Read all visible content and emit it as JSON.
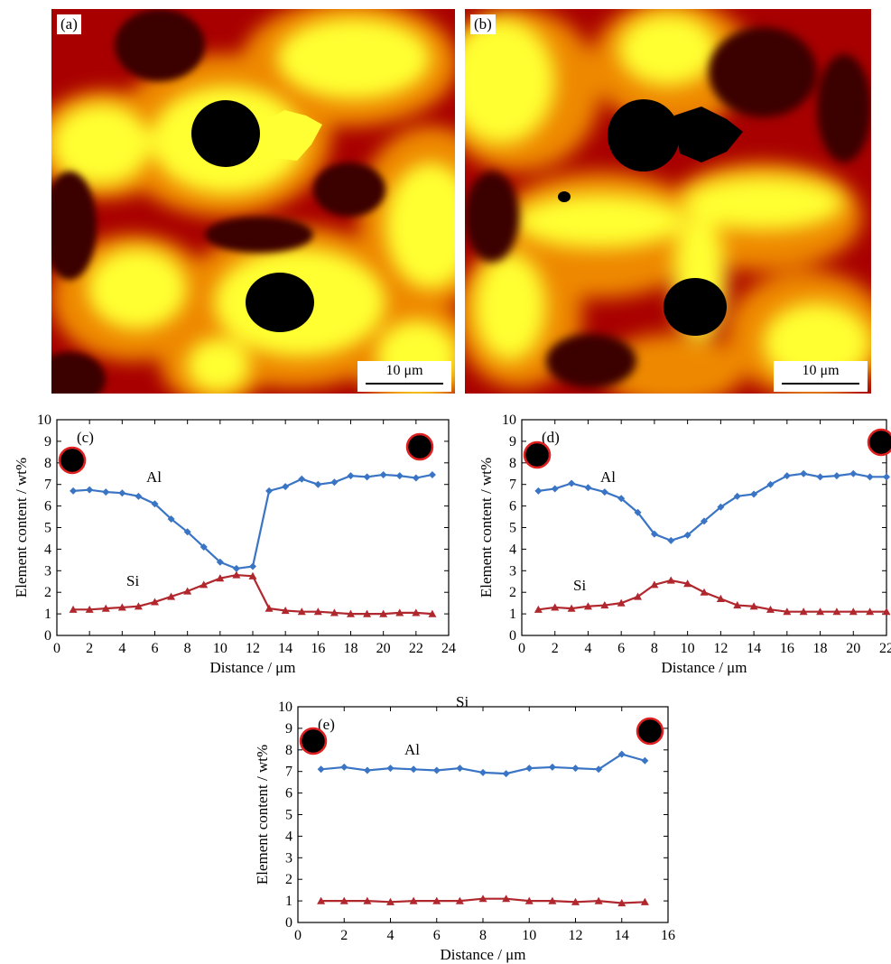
{
  "maps": [
    {
      "label": "(a)",
      "scale": "10 μm",
      "colors": {
        "bright": "#ffff33",
        "mid": "#ee8800",
        "dark": "#a80000",
        "void": "#000000"
      }
    },
    {
      "label": "(b)",
      "scale": "10 μm",
      "colors": {
        "bright": "#ffff33",
        "mid": "#ee8800",
        "dark": "#a80000",
        "void": "#000000"
      }
    }
  ],
  "chart_data": [
    {
      "type": "line",
      "panel_label": "(c)",
      "xlabel": "Distance / μm",
      "ylabel": "Element content / wt%",
      "xlim": [
        0,
        24
      ],
      "ylim": [
        0,
        10
      ],
      "xticks": [
        0,
        2,
        4,
        6,
        8,
        10,
        12,
        14,
        16,
        18,
        20,
        22,
        24
      ],
      "yticks": [
        0,
        1,
        2,
        3,
        4,
        5,
        6,
        7,
        8,
        9,
        10
      ],
      "series": [
        {
          "name": "Al",
          "marker": "diamond",
          "color": "#3a74c4",
          "x": [
            1,
            2,
            3,
            4,
            5,
            6,
            7,
            8,
            9,
            10,
            11,
            12,
            13,
            14,
            15,
            16,
            17,
            18,
            19,
            20,
            21,
            22,
            23
          ],
          "y": [
            6.7,
            6.75,
            6.65,
            6.6,
            6.45,
            6.1,
            5.4,
            4.8,
            4.1,
            3.4,
            3.1,
            3.2,
            6.7,
            6.9,
            7.25,
            7.0,
            7.1,
            7.4,
            7.35,
            7.45,
            7.4,
            7.3,
            7.45
          ]
        },
        {
          "name": "Si",
          "marker": "triangle",
          "color": "#b0282e",
          "x": [
            1,
            2,
            3,
            4,
            5,
            6,
            7,
            8,
            9,
            10,
            11,
            12,
            13,
            14,
            15,
            16,
            17,
            18,
            19,
            20,
            21,
            22,
            23
          ],
          "y": [
            1.2,
            1.2,
            1.25,
            1.3,
            1.35,
            1.55,
            1.8,
            2.05,
            2.35,
            2.65,
            2.8,
            2.75,
            1.25,
            1.15,
            1.1,
            1.1,
            1.05,
            1.0,
            1.0,
            1.0,
            1.05,
            1.05,
            1.0
          ]
        }
      ]
    },
    {
      "type": "line",
      "panel_label": "(d)",
      "xlabel": "Distance / μm",
      "ylabel": "Element content / wt%",
      "xlim": [
        0,
        22
      ],
      "ylim": [
        0,
        10
      ],
      "xticks": [
        0,
        2,
        4,
        6,
        8,
        10,
        12,
        14,
        16,
        18,
        20,
        22
      ],
      "yticks": [
        0,
        1,
        2,
        3,
        4,
        5,
        6,
        7,
        8,
        9,
        10
      ],
      "series": [
        {
          "name": "Al",
          "marker": "diamond",
          "color": "#3a74c4",
          "x": [
            1,
            2,
            3,
            4,
            5,
            6,
            7,
            8,
            9,
            10,
            11,
            12,
            13,
            14,
            15,
            16,
            17,
            18,
            19,
            20,
            21,
            22
          ],
          "y": [
            6.7,
            6.8,
            7.05,
            6.85,
            6.65,
            6.35,
            5.7,
            4.7,
            4.4,
            4.65,
            5.3,
            5.95,
            6.45,
            6.55,
            7.0,
            7.4,
            7.5,
            7.35,
            7.4,
            7.5,
            7.35,
            7.35
          ]
        },
        {
          "name": "Si",
          "marker": "triangle",
          "color": "#b0282e",
          "x": [
            1,
            2,
            3,
            4,
            5,
            6,
            7,
            8,
            9,
            10,
            11,
            12,
            13,
            14,
            15,
            16,
            17,
            18,
            19,
            20,
            21,
            22
          ],
          "y": [
            1.2,
            1.3,
            1.25,
            1.35,
            1.4,
            1.5,
            1.8,
            2.35,
            2.55,
            2.4,
            2.0,
            1.7,
            1.4,
            1.35,
            1.2,
            1.1,
            1.1,
            1.1,
            1.1,
            1.1,
            1.1,
            1.1
          ]
        }
      ]
    },
    {
      "type": "line",
      "panel_label": "(e)",
      "xlabel": "Distance / μm",
      "ylabel": "Element content / wt%",
      "xlim": [
        0,
        16
      ],
      "ylim": [
        0,
        10
      ],
      "xticks": [
        0,
        2,
        4,
        6,
        8,
        10,
        12,
        14,
        16
      ],
      "yticks": [
        0,
        1,
        2,
        3,
        4,
        5,
        6,
        7,
        8,
        9,
        10
      ],
      "series": [
        {
          "name": "Al",
          "marker": "diamond",
          "color": "#3a74c4",
          "x": [
            1,
            2,
            3,
            4,
            5,
            6,
            7,
            8,
            9,
            10,
            11,
            12,
            13,
            14,
            15
          ],
          "y": [
            7.1,
            7.2,
            7.05,
            7.15,
            7.1,
            7.05,
            7.15,
            6.95,
            6.9,
            7.15,
            7.2,
            7.15,
            7.1,
            7.8,
            7.5
          ]
        },
        {
          "name": "Si",
          "marker": "triangle",
          "color": "#b0282e",
          "x": [
            1,
            2,
            3,
            4,
            5,
            6,
            7,
            8,
            9,
            10,
            11,
            12,
            13,
            14,
            15
          ],
          "y": [
            1.0,
            1.0,
            1.0,
            0.95,
            1.0,
            1.0,
            1.0,
            1.1,
            1.1,
            1.0,
            1.0,
            0.95,
            1.0,
            0.9,
            0.95
          ]
        }
      ]
    }
  ]
}
